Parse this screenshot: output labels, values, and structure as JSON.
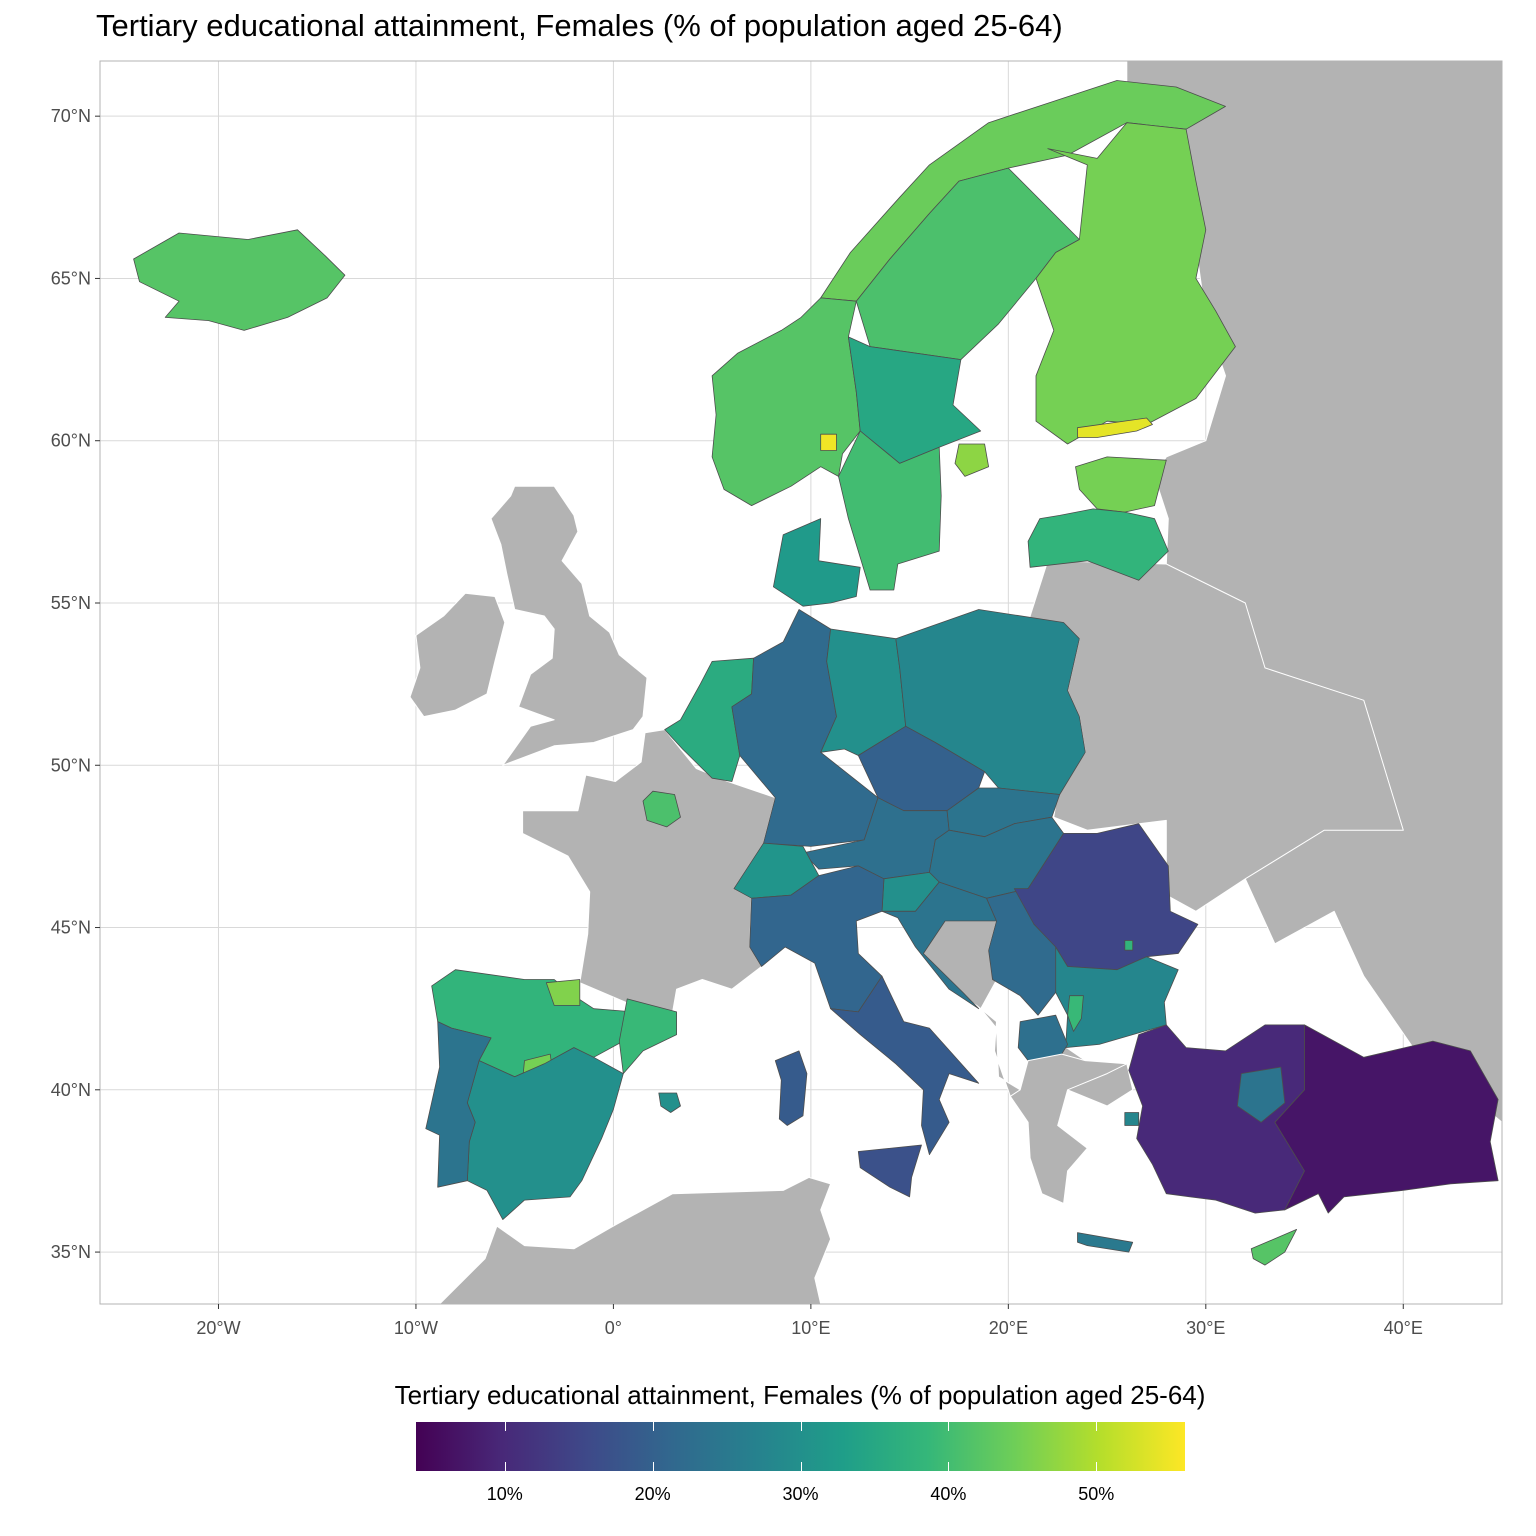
{
  "title": "Tertiary educational attainment, Females (% of population aged 25-64)",
  "map": {
    "projection": "lon-lat",
    "lon_range": [
      -26,
      45
    ],
    "lat_range": [
      33.4,
      71.7
    ],
    "grid": true,
    "lat_ticks": [
      {
        "value": 70,
        "label": "70°N"
      },
      {
        "value": 65,
        "label": "65°N"
      },
      {
        "value": 60,
        "label": "60°N"
      },
      {
        "value": 55,
        "label": "55°N"
      },
      {
        "value": 50,
        "label": "50°N"
      },
      {
        "value": 45,
        "label": "45°N"
      },
      {
        "value": 40,
        "label": "40°N"
      },
      {
        "value": 35,
        "label": "35°N"
      }
    ],
    "lon_ticks": [
      {
        "value": -20,
        "label": "20°W"
      },
      {
        "value": -10,
        "label": "10°W"
      },
      {
        "value": 0,
        "label": "0°"
      },
      {
        "value": 10,
        "label": "10°E"
      },
      {
        "value": 20,
        "label": "20°E"
      },
      {
        "value": 30,
        "label": "30°E"
      },
      {
        "value": 40,
        "label": "40°E"
      }
    ],
    "colors": {
      "panel_border": "#b3b3b3",
      "grid": "#d9d9d9",
      "no_data_land": "#b3b3b3",
      "region_border": "#4d4d4d"
    }
  },
  "legend": {
    "title": "Tertiary educational attainment, Females (% of population aged 25-64)",
    "scale": "viridis",
    "range": [
      4,
      56
    ],
    "ticks": [
      {
        "value": 10,
        "label": "10%"
      },
      {
        "value": 20,
        "label": "20%"
      },
      {
        "value": 30,
        "label": "30%"
      },
      {
        "value": 40,
        "label": "40%"
      },
      {
        "value": 50,
        "label": "50%"
      }
    ],
    "stops": [
      "#440154",
      "#482878",
      "#3e4989",
      "#31688e",
      "#26828e",
      "#1f9e89",
      "#35b779",
      "#6ece58",
      "#b5de2b",
      "#fde725"
    ]
  },
  "regions_estimated": [
    {
      "name": "Iceland",
      "value": 42
    },
    {
      "name": "Norway North",
      "value": 44
    },
    {
      "name": "Norway South",
      "value": 42
    },
    {
      "name": "Oslo",
      "value": 55
    },
    {
      "name": "Sweden North",
      "value": 41
    },
    {
      "name": "Sweden Central",
      "value": 35
    },
    {
      "name": "Sweden South",
      "value": 40
    },
    {
      "name": "Stockholm",
      "value": 47
    },
    {
      "name": "Finland",
      "value": 45
    },
    {
      "name": "Helsinki",
      "value": 54
    },
    {
      "name": "Estonia",
      "value": 45
    },
    {
      "name": "Latvia",
      "value": 38
    },
    {
      "name": "Denmark",
      "value": 32
    },
    {
      "name": "Ireland",
      "value": null
    },
    {
      "name": "United Kingdom",
      "value": null
    },
    {
      "name": "France",
      "value": null
    },
    {
      "name": "Ile-de-France",
      "value": 41
    },
    {
      "name": "Benelux",
      "value": 36
    },
    {
      "name": "Germany West",
      "value": 22
    },
    {
      "name": "Germany East",
      "value": 30
    },
    {
      "name": "Poland",
      "value": 28
    },
    {
      "name": "Czechia",
      "value": 20
    },
    {
      "name": "Austria",
      "value": 23
    },
    {
      "name": "Switzerland",
      "value": 31
    },
    {
      "name": "Slovakia",
      "value": 24
    },
    {
      "name": "Hungary",
      "value": 24
    },
    {
      "name": "Slovenia",
      "value": 30
    },
    {
      "name": "Croatia",
      "value": 24
    },
    {
      "name": "Serbia",
      "value": 22
    },
    {
      "name": "Italy North",
      "value": 21
    },
    {
      "name": "Italy South",
      "value": 19
    },
    {
      "name": "Sardinia",
      "value": 19
    },
    {
      "name": "Sicily",
      "value": 17
    },
    {
      "name": "Spain North",
      "value": 38
    },
    {
      "name": "Basque Country",
      "value": 46
    },
    {
      "name": "Madrid",
      "value": 45
    },
    {
      "name": "Spain South",
      "value": 30
    },
    {
      "name": "Catalonia",
      "value": 39
    },
    {
      "name": "Balearic Islands",
      "value": 30
    },
    {
      "name": "Portugal",
      "value": 24
    },
    {
      "name": "Romania",
      "value": 15
    },
    {
      "name": "Bucharest",
      "value": 38
    },
    {
      "name": "Bulgaria",
      "value": 28
    },
    {
      "name": "Sofia",
      "value": 39
    },
    {
      "name": "North Macedonia",
      "value": 23
    },
    {
      "name": "Greece",
      "value": 28
    },
    {
      "name": "Crete",
      "value": 25
    },
    {
      "name": "Cyprus",
      "value": 42
    },
    {
      "name": "Turkey West",
      "value": 10
    },
    {
      "name": "Ankara",
      "value": 24
    },
    {
      "name": "Turkey East",
      "value": 7
    }
  ]
}
